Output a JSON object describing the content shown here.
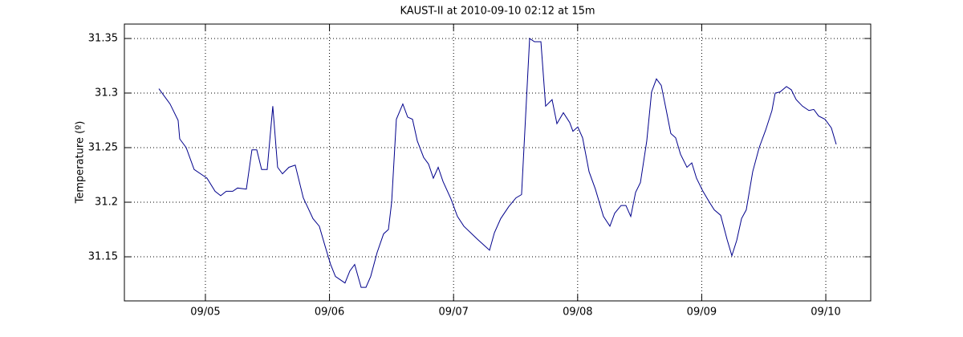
{
  "chart_data": {
    "type": "line",
    "title": "KAUST-II at 2010-09-10 02:12 at 15m",
    "y_label": "Temperature (º)",
    "x": [
      4.625,
      4.715,
      4.78,
      4.793,
      4.845,
      4.909,
      5.013,
      5.078,
      5.123,
      5.168,
      5.22,
      5.259,
      5.33,
      5.375,
      5.414,
      5.453,
      5.498,
      5.543,
      5.582,
      5.621,
      5.673,
      5.724,
      5.789,
      5.867,
      5.918,
      5.964,
      6.009,
      6.048,
      6.125,
      6.164,
      6.203,
      6.255,
      6.294,
      6.332,
      6.384,
      6.436,
      6.475,
      6.501,
      6.539,
      6.591,
      6.63,
      6.669,
      6.708,
      6.759,
      6.798,
      6.837,
      6.876,
      6.915,
      6.979,
      7.031,
      7.083,
      7.193,
      7.29,
      7.329,
      7.38,
      7.445,
      7.503,
      7.548,
      7.613,
      7.652,
      7.704,
      7.742,
      7.794,
      7.833,
      7.885,
      7.936,
      7.962,
      8.001,
      8.04,
      8.092,
      8.143,
      8.208,
      8.26,
      8.299,
      8.35,
      8.389,
      8.428,
      8.467,
      8.506,
      8.557,
      8.596,
      8.635,
      8.674,
      8.713,
      8.751,
      8.79,
      8.829,
      8.881,
      8.92,
      8.958,
      9.01,
      9.062,
      9.101,
      9.153,
      9.204,
      9.243,
      9.282,
      9.321,
      9.359,
      9.411,
      9.463,
      9.515,
      9.566,
      9.592,
      9.631,
      9.683,
      9.722,
      9.761,
      9.812,
      9.864,
      9.903,
      9.942,
      9.994,
      10.045,
      10.084
    ],
    "series": [
      {
        "name": "Temperature",
        "color": "#00008b",
        "values": [
          31.304,
          31.29,
          31.275,
          31.258,
          31.25,
          31.23,
          31.222,
          31.21,
          31.206,
          31.21,
          31.21,
          31.213,
          31.212,
          31.248,
          31.248,
          31.23,
          31.23,
          31.288,
          31.232,
          31.226,
          31.232,
          31.234,
          31.204,
          31.185,
          31.178,
          31.16,
          31.143,
          31.132,
          31.126,
          31.137,
          31.143,
          31.122,
          31.122,
          31.132,
          31.154,
          31.171,
          31.175,
          31.2,
          31.276,
          31.29,
          31.278,
          31.276,
          31.256,
          31.241,
          31.235,
          31.222,
          31.232,
          31.219,
          31.203,
          31.187,
          31.178,
          31.166,
          31.156,
          31.172,
          31.185,
          31.196,
          31.204,
          31.207,
          31.35,
          31.347,
          31.347,
          31.288,
          31.294,
          31.272,
          31.282,
          31.273,
          31.265,
          31.269,
          31.259,
          31.228,
          31.212,
          31.187,
          31.178,
          31.19,
          31.197,
          31.197,
          31.187,
          31.209,
          31.218,
          31.256,
          31.301,
          31.313,
          31.307,
          31.285,
          31.263,
          31.259,
          31.244,
          31.232,
          31.236,
          31.222,
          31.21,
          31.2,
          31.193,
          31.188,
          31.166,
          31.151,
          31.165,
          31.185,
          31.193,
          31.228,
          31.25,
          31.266,
          31.284,
          31.3,
          31.301,
          31.306,
          31.303,
          31.294,
          31.288,
          31.284,
          31.285,
          31.279,
          31.276,
          31.268,
          31.253
        ]
      }
    ],
    "xlim": [
      4.347,
      10.362
    ],
    "xticks": [
      {
        "value": 5,
        "label": "09/05"
      },
      {
        "value": 6,
        "label": "09/06"
      },
      {
        "value": 7,
        "label": "09/07"
      },
      {
        "value": 8,
        "label": "09/08"
      },
      {
        "value": 9,
        "label": "09/09"
      },
      {
        "value": 10,
        "label": "09/10"
      }
    ],
    "ylim": [
      31.1096,
      31.3632
    ],
    "yticks": [
      31.15,
      31.2,
      31.25,
      31.3,
      31.35
    ],
    "grid": true
  }
}
